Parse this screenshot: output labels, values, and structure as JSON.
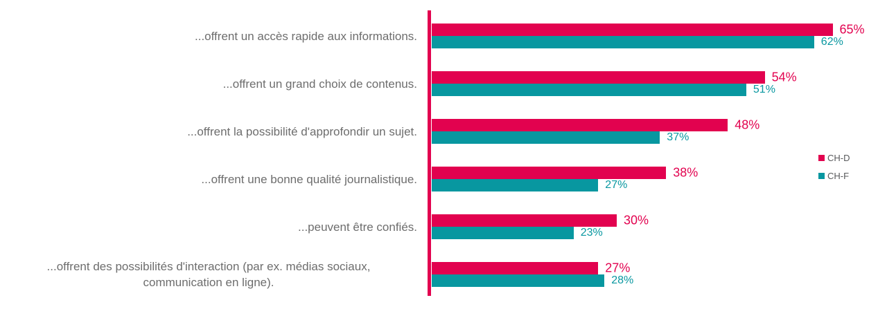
{
  "chart_data": {
    "type": "bar",
    "orientation": "horizontal",
    "title": "",
    "xlabel": "",
    "ylabel": "",
    "xlim": [
      0,
      100
    ],
    "grid": false,
    "value_suffix": "%",
    "legend_position": "right",
    "categories": [
      [
        "...offrent un accès rapide aux informations."
      ],
      [
        "...offrent un grand choix de contenus."
      ],
      [
        "...offrent la possibilité d'approfondir un sujet."
      ],
      [
        "...offrent une bonne qualité journalistique."
      ],
      [
        "...peuvent être confiés."
      ],
      [
        "...offrent des possibilités d'interaction (par ex. médias sociaux,",
        "communication en ligne)."
      ]
    ],
    "series": [
      {
        "name": "CH-D",
        "color": "#e2024f",
        "values": [
          65,
          54,
          48,
          38,
          30,
          27
        ]
      },
      {
        "name": "CH-F",
        "color": "#0897a0",
        "values": [
          62,
          51,
          37,
          27,
          23,
          28
        ]
      }
    ],
    "colors": {
      "axis_line": "#e2024f",
      "category_text": "#6d6d6d",
      "legend_text": "#57585a"
    }
  }
}
